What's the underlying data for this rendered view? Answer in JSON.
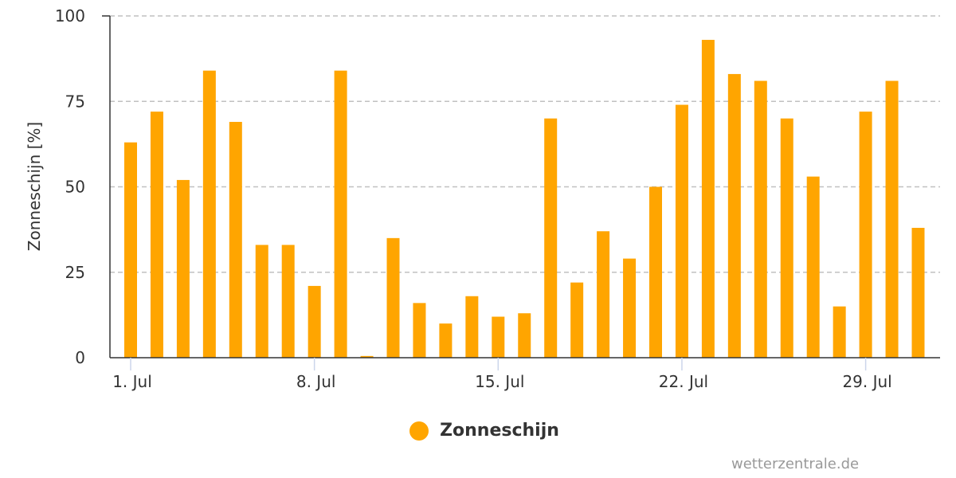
{
  "chart_data": {
    "type": "bar",
    "ylabel": "Zonneschijn [%]",
    "ylim": [
      0,
      100
    ],
    "yticks": [
      "0",
      "25",
      "50",
      "75",
      "100"
    ],
    "grid": true,
    "x_tick_labels": [
      "1. Jul",
      "8. Jul",
      "15. Jul",
      "22. Jul",
      "29. Jul"
    ],
    "x_tick_days": [
      1,
      8,
      15,
      22,
      29
    ],
    "categories": [
      1,
      2,
      3,
      4,
      5,
      6,
      7,
      8,
      9,
      10,
      11,
      12,
      13,
      14,
      15,
      16,
      17,
      18,
      19,
      20,
      21,
      22,
      23,
      24,
      25,
      26,
      27,
      28,
      29,
      30,
      31
    ],
    "series": [
      {
        "name": "Zonneschijn",
        "color": "#FFA500",
        "values": [
          63,
          72,
          52,
          84,
          69,
          33,
          33,
          21,
          84,
          0.5,
          35,
          16,
          10,
          18,
          12,
          13,
          70,
          22,
          37,
          29,
          50,
          74,
          93,
          83,
          81,
          70,
          53,
          15,
          72,
          81,
          38
        ]
      }
    ],
    "legend_position": "bottom"
  },
  "legend": {
    "label": "Zonneschijn",
    "color": "#FFA500"
  },
  "credit": "wetterzentrale.de"
}
